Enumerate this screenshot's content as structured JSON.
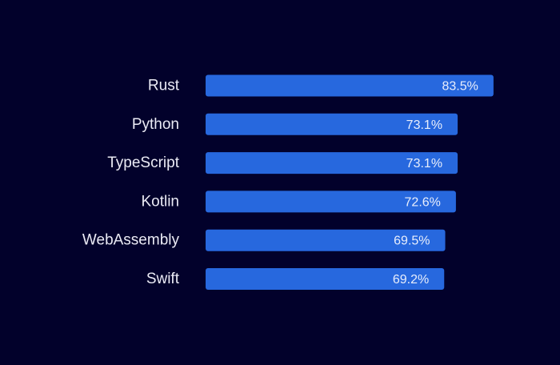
{
  "chart_data": {
    "type": "bar",
    "orientation": "horizontal",
    "categories": [
      "Rust",
      "Python",
      "TypeScript",
      "Kotlin",
      "WebAssembly",
      "Swift"
    ],
    "values": [
      83.5,
      73.1,
      73.1,
      72.6,
      69.5,
      69.2
    ],
    "value_labels": [
      "83.5%",
      "73.1%",
      "73.1%",
      "72.6%",
      "69.5%",
      "69.2%"
    ],
    "unit": "%",
    "grid": false,
    "legend": "none",
    "colors": {
      "background": "#02012b",
      "bar": "#2768de",
      "label": "#ebebf5",
      "value_label": "#e8eefc"
    }
  }
}
